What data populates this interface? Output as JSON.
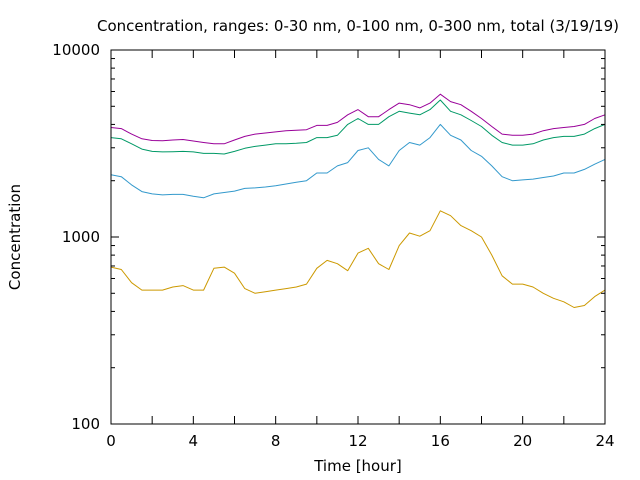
{
  "chart_data": {
    "type": "line",
    "title": "Concentration, ranges: 0-30 nm, 0-100 nm, 0-300 nm, total (3/19/19)",
    "xlabel": "Time [hour]",
    "ylabel": "Concentration",
    "xlim": [
      0,
      24
    ],
    "ylim": [
      100,
      10000
    ],
    "yscale": "log",
    "grid": false,
    "legend": "none",
    "x_ticks": [
      "0",
      "4",
      "8",
      "12",
      "16",
      "20",
      "24"
    ],
    "y_ticks": [
      "100",
      "1000",
      "10000"
    ],
    "x": [
      0,
      0.5,
      1,
      1.5,
      2,
      2.5,
      3,
      3.5,
      4,
      4.5,
      5,
      5.5,
      6,
      6.5,
      7,
      7.5,
      8,
      8.5,
      9,
      9.5,
      10,
      10.5,
      11,
      11.5,
      12,
      12.5,
      13,
      13.5,
      14,
      14.5,
      15,
      15.5,
      16,
      16.5,
      17,
      17.5,
      18,
      18.5,
      19,
      19.5,
      20,
      20.5,
      21,
      21.5,
      22,
      22.5,
      23,
      23.5,
      24
    ],
    "series": [
      {
        "color": "#cc9900",
        "values": [
          690,
          670,
          570,
          520,
          520,
          520,
          540,
          550,
          520,
          520,
          680,
          690,
          640,
          530,
          500,
          510,
          520,
          530,
          540,
          560,
          680,
          750,
          720,
          660,
          820,
          870,
          720,
          670,
          900,
          1050,
          1010,
          1080,
          1380,
          1300,
          1150,
          1080,
          1000,
          800,
          620,
          560,
          560,
          540,
          500,
          470,
          450,
          420,
          430,
          480,
          520
        ]
      },
      {
        "color": "#3399cc",
        "values": [
          2150,
          2100,
          1900,
          1750,
          1700,
          1680,
          1690,
          1690,
          1650,
          1620,
          1700,
          1730,
          1760,
          1820,
          1830,
          1850,
          1880,
          1920,
          1960,
          2000,
          2200,
          2200,
          2400,
          2500,
          2900,
          3000,
          2600,
          2400,
          2900,
          3200,
          3100,
          3400,
          4000,
          3500,
          3300,
          2900,
          2700,
          2400,
          2100,
          2000,
          2020,
          2040,
          2080,
          2120,
          2200,
          2200,
          2300,
          2450,
          2600
        ]
      },
      {
        "color": "#009966",
        "values": [
          3400,
          3350,
          3150,
          2950,
          2870,
          2850,
          2860,
          2870,
          2850,
          2800,
          2800,
          2780,
          2870,
          2980,
          3050,
          3100,
          3150,
          3150,
          3170,
          3200,
          3400,
          3400,
          3500,
          4000,
          4300,
          4000,
          4000,
          4400,
          4700,
          4600,
          4500,
          4800,
          5400,
          4700,
          4500,
          4200,
          3900,
          3500,
          3200,
          3100,
          3100,
          3150,
          3300,
          3400,
          3450,
          3450,
          3550,
          3800,
          4000
        ]
      },
      {
        "color": "#990099",
        "values": [
          3850,
          3800,
          3550,
          3350,
          3280,
          3270,
          3300,
          3320,
          3260,
          3200,
          3150,
          3150,
          3300,
          3450,
          3550,
          3600,
          3650,
          3700,
          3720,
          3750,
          3950,
          3950,
          4100,
          4500,
          4800,
          4400,
          4400,
          4800,
          5200,
          5100,
          4900,
          5200,
          5800,
          5300,
          5100,
          4700,
          4300,
          3900,
          3550,
          3500,
          3500,
          3550,
          3700,
          3800,
          3850,
          3900,
          4000,
          4300,
          4500
        ]
      }
    ]
  }
}
